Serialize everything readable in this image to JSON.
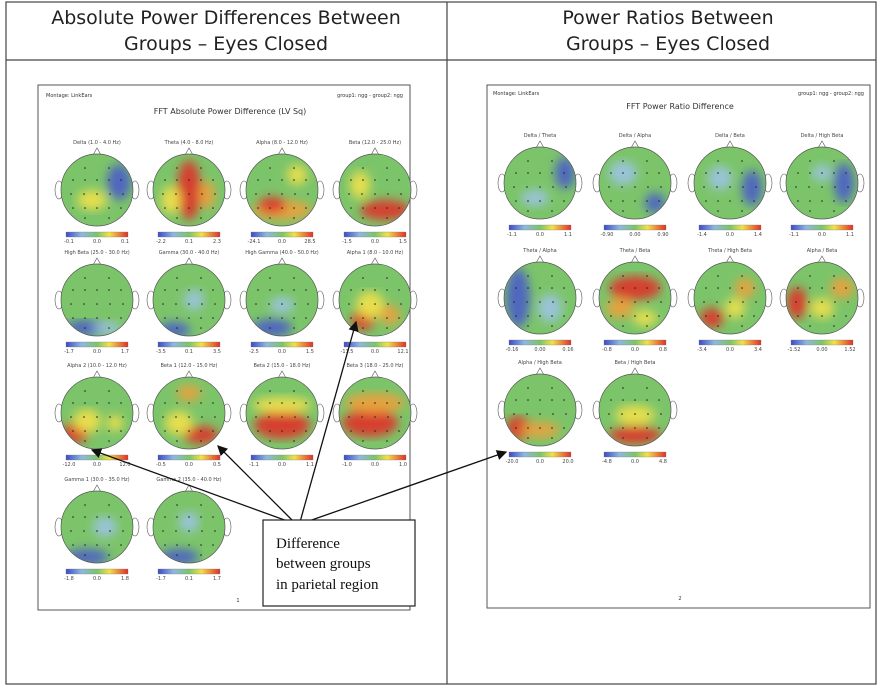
{
  "header": {
    "left_title": [
      "Absolute Power Differences Between",
      "Groups – Eyes Closed"
    ],
    "right_title": [
      "Power Ratios Between",
      "Groups – Eyes Closed"
    ]
  },
  "left_page": {
    "montage": "Montage: LinkEars",
    "groups": "group1: ngg - group2: ngg",
    "title": "FFT Absolute Power Difference (LV Sq)",
    "page_number": "1",
    "maps": [
      {
        "label": "Delta (1.0 - 4.0 Hz)",
        "scale": [
          "-0.1",
          "0.0",
          "0.1"
        ]
      },
      {
        "label": "Theta (4.0 - 8.0 Hz)",
        "scale": [
          "-2.2",
          "0.1",
          "2.3"
        ]
      },
      {
        "label": "Alpha (8.0 - 12.0 Hz)",
        "scale": [
          "-24.1",
          "0.0",
          "28.5"
        ]
      },
      {
        "label": "Beta (12.0 - 25.0 Hz)",
        "scale": [
          "-1.5",
          "0.0",
          "1.5"
        ]
      },
      {
        "label": "High Beta (25.0 - 30.0 Hz)",
        "scale": [
          "-1.7",
          "0.0",
          "1.7"
        ]
      },
      {
        "label": "Gamma (30.0 - 40.0 Hz)",
        "scale": [
          "-3.5",
          "0.1",
          "3.5"
        ]
      },
      {
        "label": "High Gamma (40.0 - 50.0 Hz)",
        "scale": [
          "-2.5",
          "0.0",
          "1.5"
        ]
      },
      {
        "label": "Alpha 1 (8.0 - 10.0 Hz)",
        "scale": [
          "-11.5",
          "0.0",
          "12.1"
        ]
      },
      {
        "label": "Alpha 2 (10.0 - 12.0 Hz)",
        "scale": [
          "-12.0",
          "0.0",
          "12.0"
        ]
      },
      {
        "label": "Beta 1 (12.0 - 15.0 Hz)",
        "scale": [
          "-0.5",
          "0.0",
          "0.5"
        ]
      },
      {
        "label": "Beta 2 (15.0 - 18.0 Hz)",
        "scale": [
          "-1.1",
          "0.0",
          "1.1"
        ]
      },
      {
        "label": "Beta 3 (18.0 - 25.0 Hz)",
        "scale": [
          "-1.0",
          "0.0",
          "1.0"
        ]
      },
      {
        "label": "Gamma 1 (30.0 - 35.0 Hz)",
        "scale": [
          "-1.8",
          "0.0",
          "1.8"
        ]
      },
      {
        "label": "Gamma 2 (35.0 - 40.0 Hz)",
        "scale": [
          "-1.7",
          "0.1",
          "1.7"
        ]
      }
    ]
  },
  "right_page": {
    "montage": "Montage: LinkEars",
    "groups": "group1: ngg - group2: ngg",
    "title": "FFT Power Ratio Difference",
    "page_number": "2",
    "maps": [
      {
        "label": "Delta / Theta",
        "scale": [
          "-1.1",
          "0.0",
          "1.1"
        ]
      },
      {
        "label": "Delta / Alpha",
        "scale": [
          "-0.90",
          "0.00",
          "0.90"
        ]
      },
      {
        "label": "Delta / Beta",
        "scale": [
          "-1.4",
          "0.0",
          "1.4"
        ]
      },
      {
        "label": "Delta / High Beta",
        "scale": [
          "-1.1",
          "0.0",
          "1.1"
        ]
      },
      {
        "label": "Theta / Alpha",
        "scale": [
          "-0.16",
          "0.00",
          "0.16"
        ]
      },
      {
        "label": "Theta / Beta",
        "scale": [
          "-0.8",
          "0.0",
          "0.8"
        ]
      },
      {
        "label": "Theta / High Beta",
        "scale": [
          "-3.4",
          "0.0",
          "3.4"
        ]
      },
      {
        "label": "Alpha / Beta",
        "scale": [
          "-1.52",
          "0.00",
          "1.52"
        ]
      },
      {
        "label": "Alpha / High Beta",
        "scale": [
          "-20.0",
          "0.0",
          "20.0"
        ]
      },
      {
        "label": "Beta / High Beta",
        "scale": [
          "-4.8",
          "0.0",
          "4.8"
        ]
      }
    ]
  },
  "callout": {
    "lines": [
      "Difference",
      "between groups",
      "in parietal region"
    ]
  }
}
